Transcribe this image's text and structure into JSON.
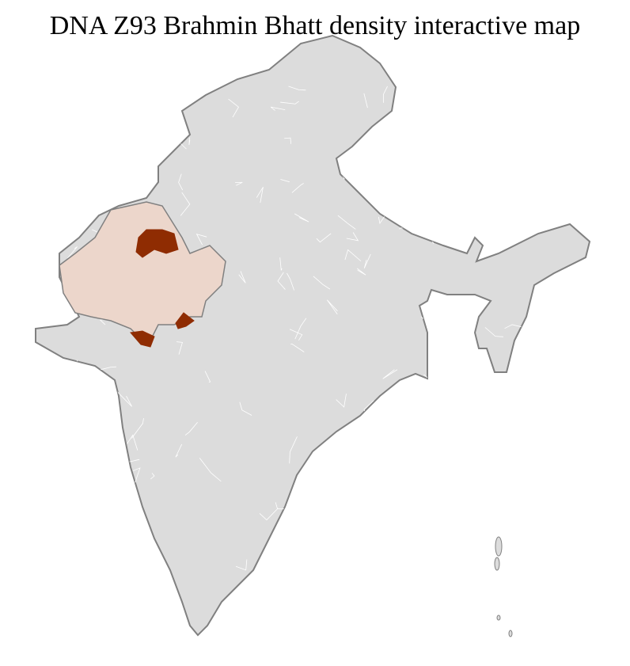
{
  "title": "DNA Z93 Brahmin Bhatt density interactive map",
  "colors": {
    "base": "#dcdcdc",
    "state_border": "#808080",
    "district_border": "#ffffff",
    "low_density": "#ecd6cb",
    "high_density": "#8f2c02"
  },
  "highlighted_regions": [
    {
      "region": "Rajasthan",
      "level": "low"
    },
    {
      "region": "North Rajasthan districts",
      "level": "high"
    },
    {
      "region": "South Rajasthan districts",
      "level": "high"
    }
  ]
}
